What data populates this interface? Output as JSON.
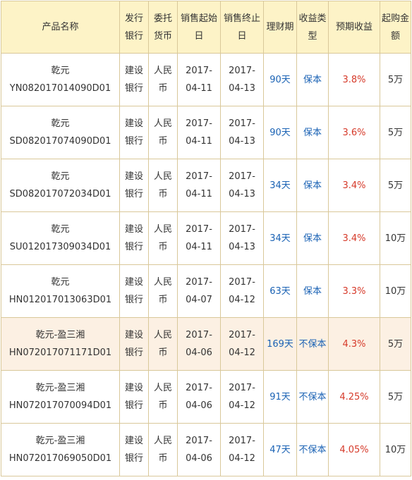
{
  "headers": {
    "product_name": "产品名称",
    "bank": "发行银行",
    "currency": "委托货币",
    "sale_start": "销售起始日",
    "sale_end": "销售终止日",
    "term": "理财期",
    "income_type": "收益类型",
    "expected_return": "预期收益",
    "min_amount": "起购金额"
  },
  "rows": [
    {
      "name_line1": "乾元",
      "name_line2": "YN082017014090D01",
      "bank": "建设银行",
      "currency": "人民币",
      "start": "2017-04-11",
      "end": "2017-04-13",
      "term": "90天",
      "type": "保本",
      "return": "3.8%",
      "min": "5万"
    },
    {
      "name_line1": "乾元",
      "name_line2": "SD082017074090D01",
      "bank": "建设银行",
      "currency": "人民币",
      "start": "2017-04-11",
      "end": "2017-04-13",
      "term": "90天",
      "type": "保本",
      "return": "3.6%",
      "min": "5万"
    },
    {
      "name_line1": "乾元",
      "name_line2": "SD082017072034D01",
      "bank": "建设银行",
      "currency": "人民币",
      "start": "2017-04-11",
      "end": "2017-04-13",
      "term": "34天",
      "type": "保本",
      "return": "3.4%",
      "min": "5万"
    },
    {
      "name_line1": "乾元",
      "name_line2": "SU012017309034D01",
      "bank": "建设银行",
      "currency": "人民币",
      "start": "2017-04-11",
      "end": "2017-04-13",
      "term": "34天",
      "type": "保本",
      "return": "3.4%",
      "min": "10万"
    },
    {
      "name_line1": "乾元",
      "name_line2": "HN012017013063D01",
      "bank": "建设银行",
      "currency": "人民币",
      "start": "2017-04-07",
      "end": "2017-04-12",
      "term": "63天",
      "type": "保本",
      "return": "3.3%",
      "min": "10万"
    },
    {
      "name_line1": "乾元-盈三湘",
      "name_line2": "HN072017071171D01",
      "bank": "建设银行",
      "currency": "人民币",
      "start": "2017-04-06",
      "end": "2017-04-12",
      "term": "169天",
      "type": "不保本",
      "return": "4.3%",
      "min": "5万"
    },
    {
      "name_line1": "乾元-盈三湘",
      "name_line2": "HN072017070094D01",
      "bank": "建设银行",
      "currency": "人民币",
      "start": "2017-04-06",
      "end": "2017-04-12",
      "term": "91天",
      "type": "不保本",
      "return": "4.25%",
      "min": "5万"
    },
    {
      "name_line1": "乾元-盈三湘",
      "name_line2": "HN072017069050D01",
      "bank": "建设银行",
      "currency": "人民币",
      "start": "2017-04-06",
      "end": "2017-04-12",
      "term": "47天",
      "type": "不保本",
      "return": "4.05%",
      "min": "10万"
    }
  ],
  "highlighted_row": 5,
  "colors": {
    "header_bg": "#fdf3c7",
    "highlight_bg": "#fcf0e3",
    "border": "#d9c89a",
    "term_and_type_text": "#1a62b4",
    "return_text": "#d63a2a"
  }
}
